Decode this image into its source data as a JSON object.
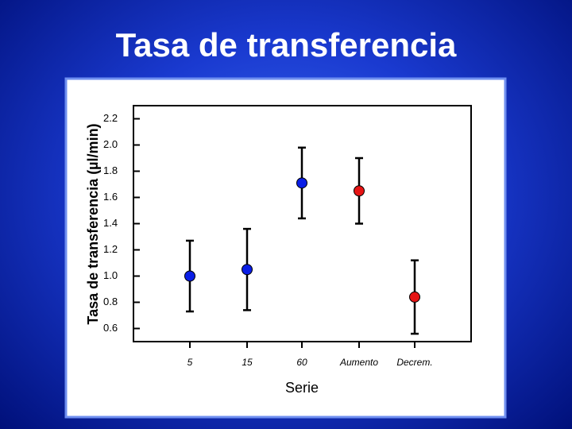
{
  "chart_data": {
    "type": "errorbar",
    "title": "Tasa de transferencia",
    "y_label": "Tasa de transferencia (µl/min)",
    "x_label": "Serie",
    "categories": [
      "5",
      "15",
      "60",
      "Aumento",
      "Decrem."
    ],
    "values": [
      1.0,
      1.05,
      1.71,
      1.65,
      0.84
    ],
    "errors": [
      0.27,
      0.31,
      0.27,
      0.25,
      0.28
    ],
    "colors": [
      "#0a1ee6",
      "#0a1ee6",
      "#0a1ee6",
      "#e61414",
      "#e61414"
    ],
    "ylim": [
      0.5,
      2.3
    ],
    "yticks": [
      0.6,
      0.8,
      {
        "value": 1.0,
        "label": "1.0"
      },
      1.2,
      1.4,
      1.6,
      1.8,
      {
        "value": 2.0,
        "label": "2.0"
      },
      2.2
    ]
  }
}
